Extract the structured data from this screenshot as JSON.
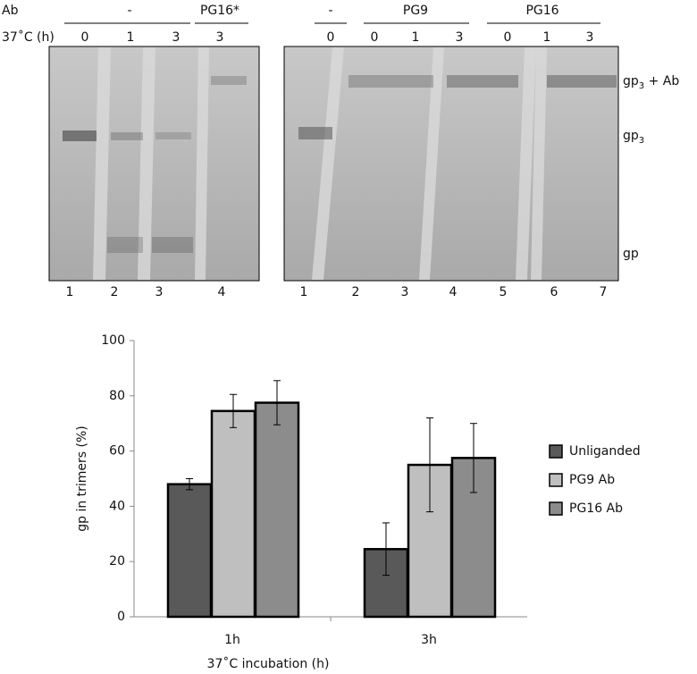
{
  "gel": {
    "row_labels": [
      "Ab",
      "37˚C (h)"
    ],
    "left": {
      "groups": [
        {
          "label": "-",
          "times": [
            "0",
            "1",
            "3"
          ]
        },
        {
          "label": "PG16*",
          "times": [
            "3"
          ]
        }
      ],
      "lanes": [
        "1",
        "2",
        "3",
        "4"
      ]
    },
    "right": {
      "groups": [
        {
          "label": "-",
          "times": [
            "0"
          ]
        },
        {
          "label": "PG9",
          "times": [
            "0",
            "1",
            "3"
          ]
        },
        {
          "label": "PG16",
          "times": [
            "0",
            "1",
            "3"
          ]
        }
      ],
      "lanes": [
        "1",
        "2",
        "3",
        "4",
        "5",
        "6",
        "7"
      ]
    },
    "band_labels": [
      {
        "base": "gp",
        "sub": "3",
        "rest": " + Ab"
      },
      {
        "base": "gp",
        "sub": "3"
      },
      {
        "base": "gp"
      }
    ]
  },
  "chart_data": {
    "type": "bar",
    "categories": [
      "1h",
      "3h"
    ],
    "series": [
      {
        "name": "Unliganded",
        "color": "#595959",
        "values": [
          48,
          24.5
        ],
        "errors": [
          2,
          9.5
        ]
      },
      {
        "name": "PG9 Ab",
        "color": "#bfbfbf",
        "values": [
          74.5,
          55
        ],
        "errors": [
          6,
          17
        ]
      },
      {
        "name": "PG16 Ab",
        "color": "#8c8c8c",
        "values": [
          77.5,
          57.5
        ],
        "errors": [
          8,
          12.5
        ]
      }
    ],
    "ylim": [
      0,
      100
    ],
    "yticks": [
      0,
      20,
      40,
      60,
      80,
      100
    ],
    "xlabel": "37˚C incubation (h)",
    "ylabel": "gp in trimers (%)",
    "legend": "right"
  }
}
